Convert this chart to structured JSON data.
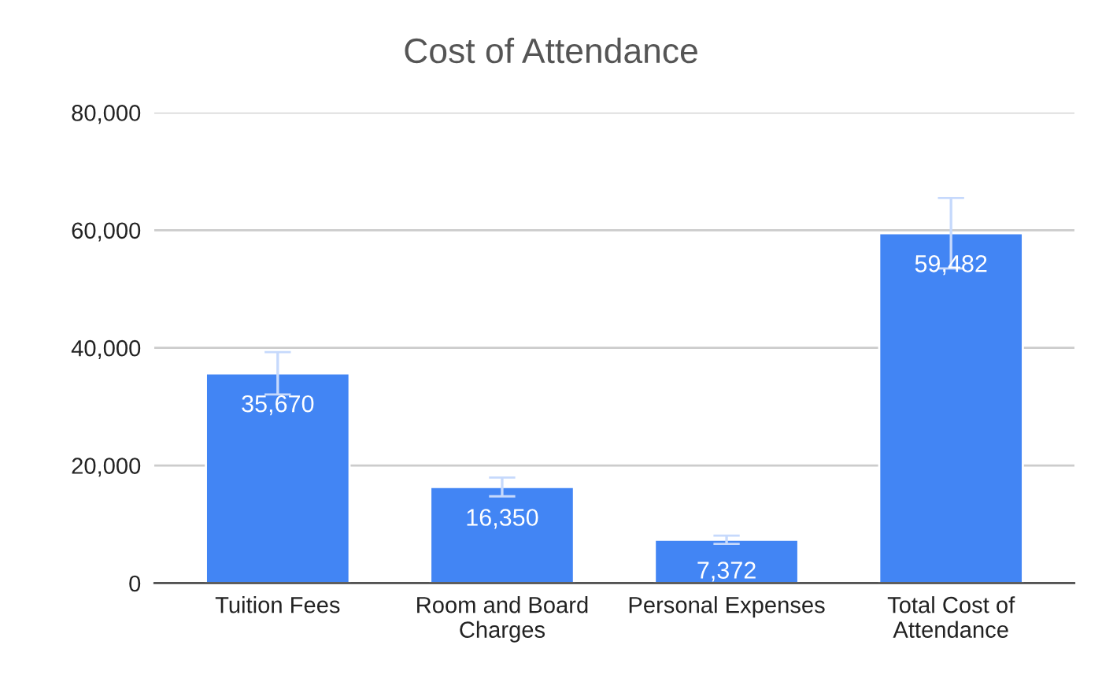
{
  "chart_data": {
    "type": "bar",
    "title": "Cost of Attendance",
    "categories": [
      "Tuition Fees",
      "Room and Board\nCharges",
      "Personal Expenses",
      "Total Cost of\nAttendance"
    ],
    "values": [
      35670,
      16350,
      7372,
      59482
    ],
    "value_labels": [
      "35,670",
      "16,350",
      "7,372",
      "59,482"
    ],
    "errors": [
      3600,
      1600,
      700,
      6000
    ],
    "color": "#4285f4",
    "ylim": [
      0,
      80000
    ],
    "yticks": [
      0,
      {
        "value": 20000,
        "label": "20,000"
      },
      {
        "value": 40000,
        "label": "40,000"
      },
      {
        "value": 60000,
        "label": "60,000"
      },
      {
        "value": 80000,
        "label": "80,000"
      }
    ],
    "grid": "y",
    "legend": false
  }
}
